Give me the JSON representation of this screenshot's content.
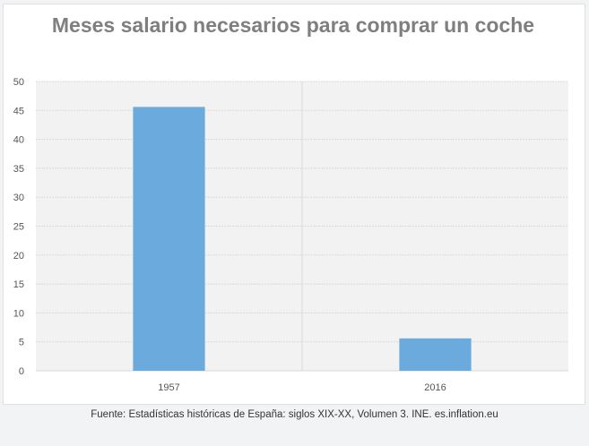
{
  "chart_data": {
    "type": "bar",
    "title": "Meses salario necesarios para comprar un coche",
    "categories": [
      "1957",
      "2016"
    ],
    "values": [
      45.6,
      5.6
    ],
    "xlabel": "",
    "ylabel": "",
    "ylim": [
      0,
      50
    ],
    "yticks": [
      0,
      5,
      10,
      15,
      20,
      25,
      30,
      35,
      40,
      45,
      50
    ],
    "grid": true,
    "legend": "none",
    "bar_color": "#6aaadc",
    "grid_color": "#d9d9d9",
    "plot_background": "#f2f2f2"
  },
  "caption": "Fuente: Estadísticas históricas de España: siglos XIX-XX, Volumen 3. INE. es.inflation.eu"
}
